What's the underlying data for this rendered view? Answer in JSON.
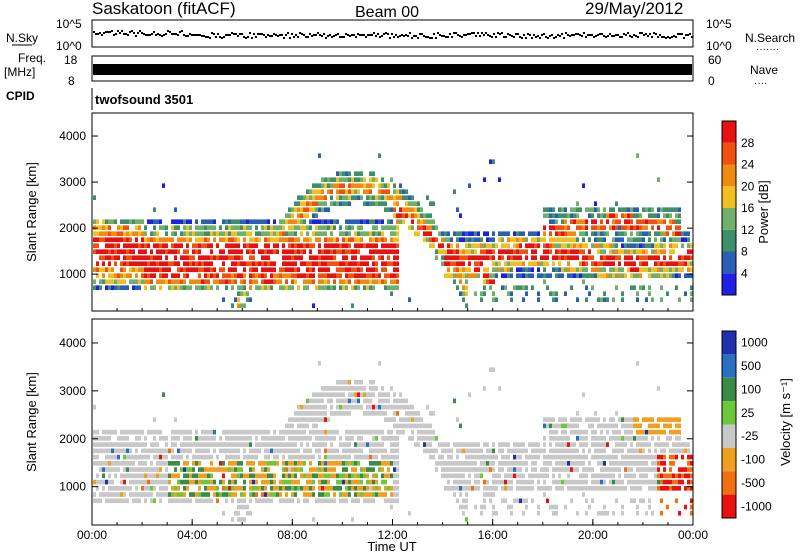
{
  "header": {
    "station": "Saskatoon (fitACF)",
    "beam": "Beam 00",
    "date": "29/May/2012"
  },
  "strip_labels": {
    "nsky": "N.Sky",
    "nsearch": "N.Search",
    "nsearch_dots": "·······",
    "freq": "Freq.",
    "freq_unit": "[MHz]",
    "nave": "Nave",
    "nave_dots": "····",
    "cpid": "CPID",
    "cpid_value": "twofsound 3501"
  },
  "strip_ticks": {
    "nsky_top": "10^5",
    "nsky_bottom": "10^0",
    "nsearch_top": "10^5",
    "nsearch_bottom": "10^0",
    "freq_top": "18",
    "freq_bottom": "8",
    "nave_top": "60",
    "nave_bottom": "0"
  },
  "colors": {
    "power_scale": [
      "#1f1fe6",
      "#2a5fb8",
      "#3f8f6a",
      "#6fb06a",
      "#f0c020",
      "#f08a10",
      "#f05010",
      "#e81010"
    ],
    "velocity_scale": [
      "#1f2fb0",
      "#2a6fc0",
      "#3a8a4a",
      "#6ac83a",
      "#c8c8c8",
      "#f0a020",
      "#f07010",
      "#e81010"
    ]
  },
  "chart_data": [
    {
      "type": "heatmap",
      "name": "power",
      "ylabel": "Slant Range [km]",
      "ylim": [
        200,
        4500
      ],
      "yticks": [
        1000,
        2000,
        3000,
        4000
      ],
      "xlim": [
        0,
        24
      ],
      "colorbar": {
        "label": "Power [dB]",
        "ticks": [
          4,
          8,
          12,
          16,
          20,
          24,
          28
        ],
        "range": [
          0,
          32
        ]
      }
    },
    {
      "type": "heatmap",
      "name": "velocity",
      "ylabel": "Slant Range [km]",
      "xlabel": "Time UT",
      "ylim": [
        200,
        4500
      ],
      "yticks": [
        1000,
        2000,
        3000,
        4000
      ],
      "xlim": [
        0,
        24
      ],
      "xticks": [
        "00:00",
        "04:00",
        "08:00",
        "12:00",
        "16:00",
        "20:00",
        "00:00"
      ],
      "colorbar": {
        "label": "Velocity [m s⁻¹]",
        "ticks": [
          "1000",
          "500",
          "100",
          "25",
          "-25",
          "-100",
          "-500",
          "-1000"
        ]
      }
    }
  ]
}
